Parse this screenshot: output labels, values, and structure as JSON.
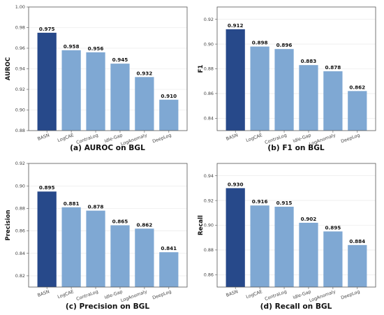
{
  "chart_data": [
    {
      "type": "bar",
      "panel": "a",
      "title": "(a) AUROC on BGL",
      "ylabel": "AUROC",
      "xlabel": "",
      "categories": [
        "BASN",
        "LogCAE",
        "ContraLog",
        "Idle-Gap",
        "LogAnomaly",
        "DeepLog"
      ],
      "values": [
        0.975,
        0.958,
        0.956,
        0.945,
        0.932,
        0.91
      ],
      "value_labels": [
        "0.975",
        "0.958",
        "0.956",
        "0.945",
        "0.932",
        "0.910"
      ],
      "ylim": [
        0.88,
        1.0
      ],
      "yticks": [
        "0.88",
        "0.90",
        "0.92",
        "0.94",
        "0.96",
        "0.98",
        "1.00"
      ],
      "grid": true,
      "colors": [
        "#27498a",
        "#7fa8d3",
        "#7fa8d3",
        "#7fa8d3",
        "#7fa8d3",
        "#7fa8d3"
      ]
    },
    {
      "type": "bar",
      "panel": "b",
      "title": "(b) F1 on BGL",
      "ylabel": "F1",
      "xlabel": "",
      "categories": [
        "BASN",
        "LogCAE",
        "ContraLog",
        "Idle-Gap",
        "LogAnomaly",
        "DeepLog"
      ],
      "values": [
        0.912,
        0.898,
        0.896,
        0.883,
        0.878,
        0.862
      ],
      "value_labels": [
        "0.912",
        "0.898",
        "0.896",
        "0.883",
        "0.878",
        "0.862"
      ],
      "ylim": [
        0.83,
        0.93
      ],
      "yticks": [
        "0.84",
        "0.86",
        "0.88",
        "0.90",
        "0.92"
      ],
      "grid": true,
      "colors": [
        "#27498a",
        "#7fa8d3",
        "#7fa8d3",
        "#7fa8d3",
        "#7fa8d3",
        "#7fa8d3"
      ]
    },
    {
      "type": "bar",
      "panel": "c",
      "title": "(c) Precision on BGL",
      "ylabel": "Precision",
      "xlabel": "",
      "categories": [
        "BASN",
        "LogCAE",
        "ContraLog",
        "Idle-Gap",
        "LogAnomaly",
        "DeepLog"
      ],
      "values": [
        0.895,
        0.881,
        0.878,
        0.865,
        0.862,
        0.841
      ],
      "value_labels": [
        "0.895",
        "0.881",
        "0.878",
        "0.865",
        "0.862",
        "0.841"
      ],
      "ylim": [
        0.81,
        0.92
      ],
      "yticks": [
        "0.82",
        "0.84",
        "0.86",
        "0.88",
        "0.90",
        "0.92"
      ],
      "grid": true,
      "colors": [
        "#27498a",
        "#7fa8d3",
        "#7fa8d3",
        "#7fa8d3",
        "#7fa8d3",
        "#7fa8d3"
      ]
    },
    {
      "type": "bar",
      "panel": "d",
      "title": "(d) Recall on BGL",
      "ylabel": "Recall",
      "xlabel": "",
      "categories": [
        "BASN",
        "LogCAE",
        "ContraLog",
        "Idle-Gap",
        "LogAnomaly",
        "DeepLog"
      ],
      "values": [
        0.93,
        0.916,
        0.915,
        0.902,
        0.895,
        0.884
      ],
      "value_labels": [
        "0.930",
        "0.916",
        "0.915",
        "0.902",
        "0.895",
        "0.884"
      ],
      "ylim": [
        0.85,
        0.95
      ],
      "yticks": [
        "0.86",
        "0.88",
        "0.90",
        "0.92",
        "0.94"
      ],
      "grid": true,
      "colors": [
        "#27498a",
        "#7fa8d3",
        "#7fa8d3",
        "#7fa8d3",
        "#7fa8d3",
        "#7fa8d3"
      ]
    }
  ]
}
